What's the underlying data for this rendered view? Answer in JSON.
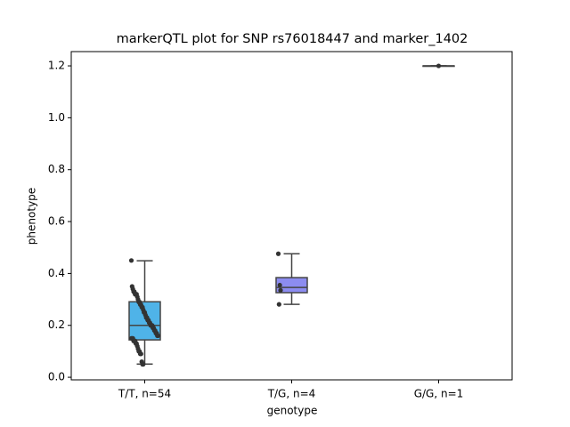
{
  "chart_data": {
    "type": "box",
    "title": "markerQTL plot for SNP rs76018447 and marker_1402",
    "xlabel": "genotype",
    "ylabel": "phenotype",
    "categories": [
      "T/T, n=54",
      "T/G, n=4",
      "G/G, n=1"
    ],
    "boxes": [
      {
        "color": "#4fb3e8",
        "min": 0.051,
        "q1": 0.144,
        "median": 0.2,
        "q3": 0.291,
        "max": 0.449,
        "points": [
          0.45,
          0.35,
          0.34,
          0.33,
          0.33,
          0.32,
          0.32,
          0.32,
          0.31,
          0.3,
          0.29,
          0.29,
          0.28,
          0.28,
          0.27,
          0.27,
          0.26,
          0.25,
          0.25,
          0.24,
          0.23,
          0.23,
          0.22,
          0.22,
          0.21,
          0.21,
          0.2,
          0.2,
          0.2,
          0.19,
          0.19,
          0.18,
          0.18,
          0.17,
          0.17,
          0.16,
          0.16,
          0.15,
          0.15,
          0.15,
          0.14,
          0.14,
          0.14,
          0.13,
          0.13,
          0.12,
          0.11,
          0.1,
          0.1,
          0.09,
          0.09,
          0.06,
          0.05,
          0.05
        ]
      },
      {
        "color": "#8c8cf0",
        "min": 0.281,
        "q1": 0.326,
        "median": 0.346,
        "q3": 0.384,
        "max": 0.476,
        "points": [
          0.476,
          0.281,
          0.355,
          0.335
        ]
      },
      {
        "color": "#e6a0e6",
        "min": 1.2,
        "q1": 1.2,
        "median": 1.2,
        "q3": 1.2,
        "max": 1.2,
        "points": [
          1.2
        ]
      }
    ],
    "point_color": "#333333",
    "ylim": [
      -0.01,
      1.255
    ],
    "yticks": [
      {
        "value": 0,
        "label": "0.0"
      },
      0.2,
      0.4,
      0.6,
      0.8,
      {
        "value": 1,
        "label": "1.0"
      },
      1.2
    ]
  }
}
